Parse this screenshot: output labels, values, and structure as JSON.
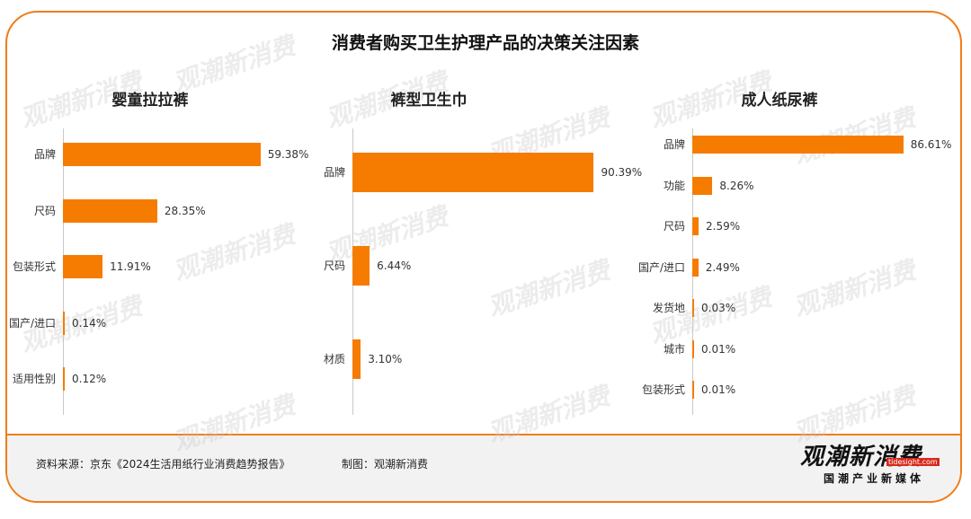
{
  "title": "消费者购买卫生护理产品的决策关注因素",
  "watermark": "观潮新消费",
  "chart_data": [
    {
      "type": "bar",
      "orientation": "horizontal",
      "title": "婴童拉拉裤",
      "categories": [
        "品牌",
        "尺码",
        "包装形式",
        "国产/进口",
        "适用性别"
      ],
      "values": [
        59.38,
        28.35,
        11.91,
        0.14,
        0.12
      ],
      "value_labels": [
        "59.38%",
        "28.35%",
        "11.91%",
        "0.14%",
        "0.12%"
      ],
      "xlim": [
        0,
        100
      ],
      "grid": false,
      "bar_color": "#f57c00"
    },
    {
      "type": "bar",
      "orientation": "horizontal",
      "title": "裤型卫生巾",
      "categories": [
        "品牌",
        "尺码",
        "材质"
      ],
      "values": [
        90.39,
        6.44,
        3.1
      ],
      "value_labels": [
        "90.39%",
        "6.44%",
        "3.10%"
      ],
      "xlim": [
        0,
        100
      ],
      "grid": false,
      "bar_color": "#f57c00"
    },
    {
      "type": "bar",
      "orientation": "horizontal",
      "title": "成人纸尿裤",
      "categories": [
        "品牌",
        "功能",
        "尺码",
        "国产/进口",
        "发货地",
        "城市",
        "包装形式"
      ],
      "values": [
        86.61,
        8.26,
        2.59,
        2.49,
        0.03,
        0.01,
        0.01
      ],
      "value_labels": [
        "86.61%",
        "8.26%",
        "2.59%",
        "2.49%",
        "0.03%",
        "0.01%",
        "0.01%"
      ],
      "xlim": [
        0,
        100
      ],
      "grid": false,
      "bar_color": "#f57c00"
    }
  ],
  "footer": {
    "source": "资料来源：京东《2024生活用纸行业消费趋势报告》",
    "credit": "制图：观潮新消费",
    "logo_main": "观潮新消费",
    "logo_en": "tidesight.com",
    "logo_sub": "国潮产业新媒体"
  },
  "colors": {
    "accent": "#f07d1a",
    "bar": "#f57c00",
    "footer_bg": "#f2f2f2"
  }
}
